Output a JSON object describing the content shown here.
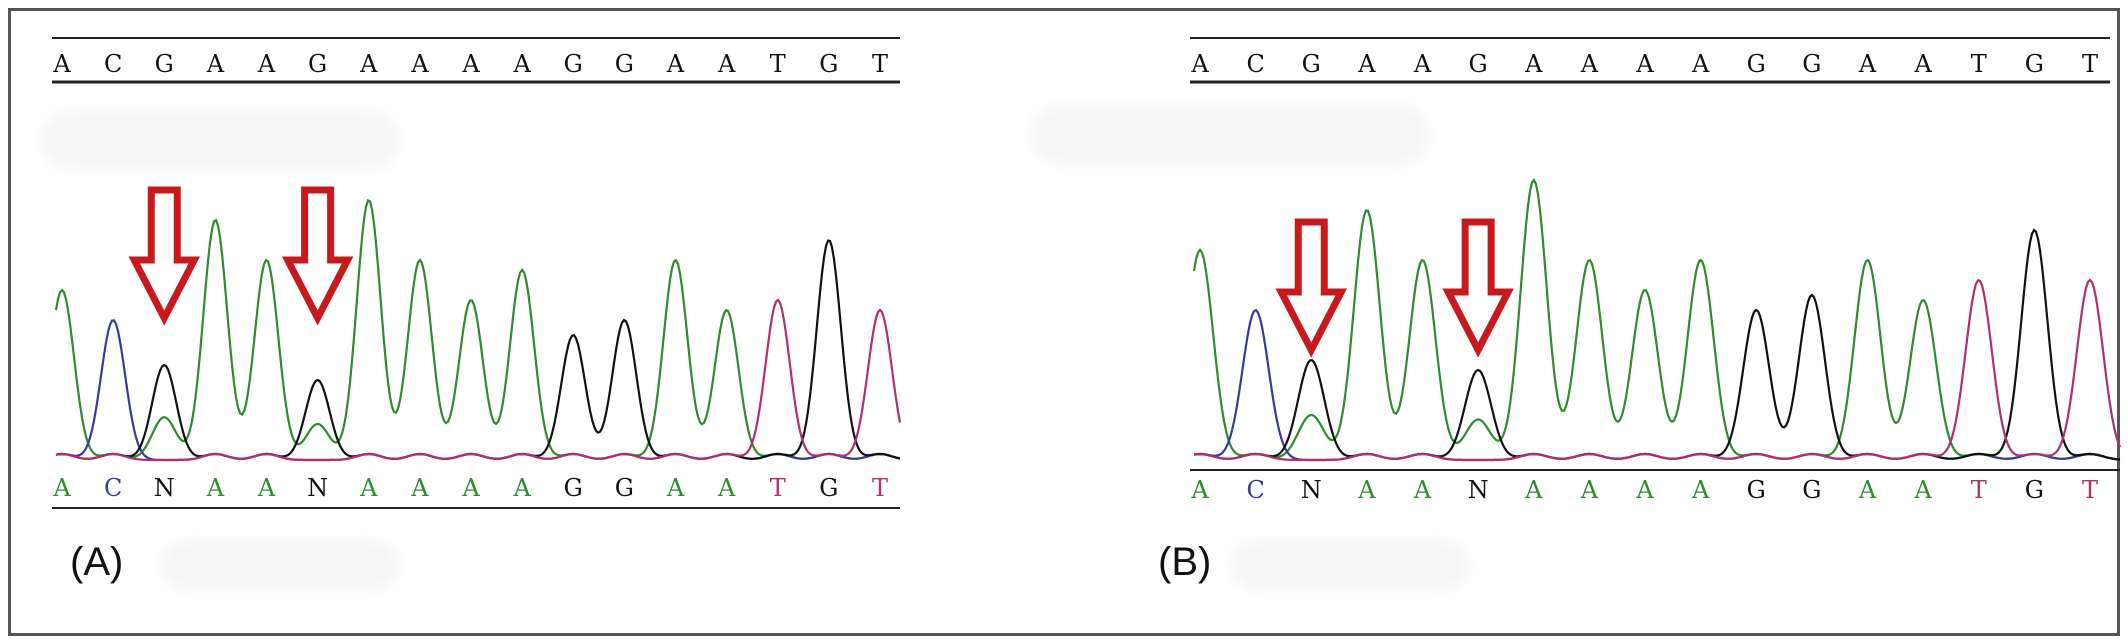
{
  "figure": {
    "panels": [
      {
        "label": "(A)",
        "reference_sequence": [
          "A",
          "C",
          "G",
          "A",
          "A",
          "G",
          "A",
          "A",
          "A",
          "A",
          "G",
          "G",
          "A",
          "A",
          "T",
          "G",
          "T"
        ],
        "called_sequence": [
          "A",
          "C",
          "N",
          "A",
          "A",
          "N",
          "A",
          "A",
          "A",
          "A",
          "G",
          "G",
          "A",
          "A",
          "T",
          "G",
          "T"
        ],
        "arrow_positions": [
          2,
          5
        ],
        "arrow_color": "#c8191c"
      },
      {
        "label": "(B)",
        "reference_sequence": [
          "A",
          "C",
          "G",
          "A",
          "A",
          "G",
          "A",
          "A",
          "A",
          "A",
          "G",
          "G",
          "A",
          "A",
          "T",
          "G",
          "T"
        ],
        "called_sequence": [
          "A",
          "C",
          "N",
          "A",
          "A",
          "N",
          "A",
          "A",
          "A",
          "A",
          "G",
          "G",
          "A",
          "A",
          "T",
          "G",
          "T"
        ],
        "arrow_positions": [
          2,
          5
        ],
        "arrow_color": "#c8191c"
      }
    ],
    "base_colors": {
      "A": "#2e8b2e",
      "C": "#3a3a9a",
      "G": "#111111",
      "T": "#b0306e",
      "N": "#111111"
    }
  }
}
